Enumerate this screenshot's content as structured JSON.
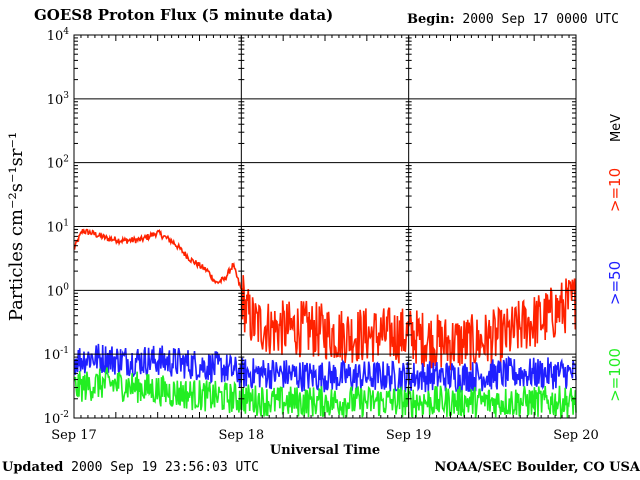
{
  "chart_data": {
    "type": "line",
    "title": "GOES8 Proton Flux (5 minute data)",
    "begin_label": "Begin:",
    "begin_value": "2000 Sep 17 0000 UTC",
    "xlabel": "Universal Time",
    "ylabel": "Particles cm⁻²s⁻¹sr⁻¹",
    "y_scale": "log",
    "ylim": [
      0.01,
      10000
    ],
    "y_ticks": [
      {
        "base": "10",
        "exp": "-2",
        "value": 0.01
      },
      {
        "base": "10",
        "exp": "-1",
        "value": 0.1
      },
      {
        "base": "10",
        "exp": "0",
        "value": 1
      },
      {
        "base": "10",
        "exp": "1",
        "value": 10
      },
      {
        "base": "10",
        "exp": "2",
        "value": 100
      },
      {
        "base": "10",
        "exp": "3",
        "value": 1000
      },
      {
        "base": "10",
        "exp": "4",
        "value": 10000
      }
    ],
    "x_ticks": [
      "Sep 17",
      "Sep 18",
      "Sep 19",
      "Sep 20"
    ],
    "x_range_days": [
      0,
      3
    ],
    "grid": true,
    "legend_placement": "right, vertical",
    "unit_label": "MeV",
    "series": [
      {
        "name": ">=10",
        "color": "#ff2200",
        "x_days": [
          0,
          0.05,
          0.1,
          0.2,
          0.3,
          0.4,
          0.5,
          0.6,
          0.65,
          0.7,
          0.8,
          0.85,
          0.9,
          0.95,
          1.0,
          1.03,
          1.08,
          1.2,
          1.4,
          1.6,
          1.8,
          2.0,
          2.2,
          2.4,
          2.5,
          2.6,
          2.7,
          2.8,
          2.9,
          2.95,
          3.0
        ],
        "values": [
          4.5,
          8.5,
          8.0,
          6.5,
          6.0,
          6.2,
          8.0,
          5.5,
          4.0,
          3.0,
          2.0,
          1.3,
          1.5,
          2.5,
          1.0,
          0.45,
          0.3,
          0.25,
          0.25,
          0.2,
          0.2,
          0.2,
          0.15,
          0.15,
          0.18,
          0.2,
          0.3,
          0.35,
          0.5,
          0.6,
          0.7
        ]
      },
      {
        "name": ">=50",
        "color": "#2020ff",
        "x_days": [
          0,
          0.1,
          0.3,
          0.5,
          0.7,
          0.9,
          1.0,
          1.2,
          1.4,
          1.6,
          1.8,
          2.0,
          2.2,
          2.4,
          2.6,
          2.8,
          3.0
        ],
        "values": [
          0.08,
          0.09,
          0.08,
          0.08,
          0.07,
          0.06,
          0.05,
          0.05,
          0.045,
          0.045,
          0.045,
          0.045,
          0.045,
          0.045,
          0.05,
          0.05,
          0.05
        ]
      },
      {
        "name": ">=100",
        "color": "#22ee22",
        "x_days": [
          0,
          0.2,
          0.4,
          0.6,
          0.8,
          1.0,
          1.2,
          1.4,
          1.6,
          1.8,
          2.0,
          2.2,
          2.4,
          2.6,
          2.8,
          3.0
        ],
        "values": [
          0.03,
          0.035,
          0.03,
          0.025,
          0.022,
          0.02,
          0.018,
          0.018,
          0.018,
          0.018,
          0.018,
          0.018,
          0.018,
          0.018,
          0.018,
          0.018
        ]
      }
    ]
  },
  "footer": {
    "updated_label": "Updated",
    "updated_value": "2000 Sep 19 23:56:03 UTC",
    "credit": "NOAA/SEC Boulder, CO USA"
  }
}
